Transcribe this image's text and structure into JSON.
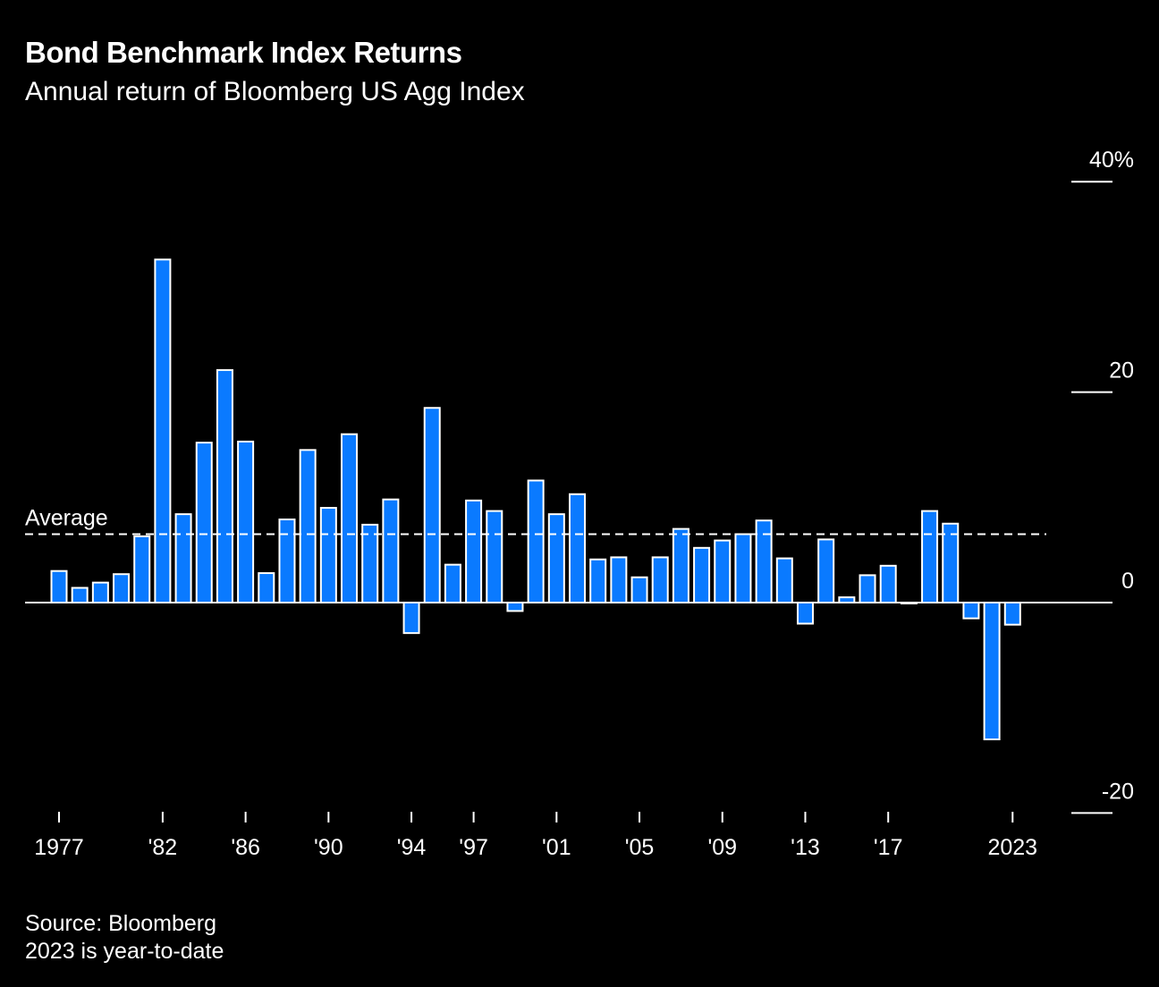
{
  "header": {
    "title": "Bond Benchmark Index Returns",
    "subtitle": "Annual return of Bloomberg US Agg Index"
  },
  "footer": {
    "source": "Source: Bloomberg",
    "note": "2023 is year-to-date"
  },
  "chart_data": {
    "type": "bar",
    "title": "Bond Benchmark Index Returns",
    "subtitle": "Annual return of Bloomberg US Agg Index",
    "categories": [
      1977,
      1978,
      1979,
      1980,
      1981,
      1982,
      1983,
      1984,
      1985,
      1986,
      1987,
      1988,
      1989,
      1990,
      1991,
      1992,
      1993,
      1994,
      1995,
      1996,
      1997,
      1998,
      1999,
      2000,
      2001,
      2002,
      2003,
      2004,
      2005,
      2006,
      2007,
      2008,
      2009,
      2010,
      2011,
      2012,
      2013,
      2014,
      2015,
      2016,
      2017,
      2018,
      2019,
      2020,
      2021,
      2022,
      2023
    ],
    "values": [
      3.0,
      1.4,
      1.9,
      2.7,
      6.3,
      32.6,
      8.4,
      15.2,
      22.1,
      15.3,
      2.8,
      7.9,
      14.5,
      9.0,
      16.0,
      7.4,
      9.8,
      -2.9,
      18.5,
      3.6,
      9.7,
      8.7,
      -0.8,
      11.6,
      8.4,
      10.3,
      4.1,
      4.3,
      2.4,
      4.3,
      7.0,
      5.2,
      5.9,
      6.5,
      7.8,
      4.2,
      -2.0,
      6.0,
      0.5,
      2.6,
      3.5,
      0.0,
      8.7,
      7.5,
      -1.5,
      -13.0,
      -2.1
    ],
    "average": {
      "label": "Average",
      "value": 6.5
    },
    "ylim": [
      -20,
      40
    ],
    "yticks": [
      {
        "value": 40,
        "label": "40%"
      },
      {
        "value": 20,
        "label": "20"
      },
      {
        "value": 0,
        "label": "0"
      },
      {
        "value": -20,
        "label": "-20"
      }
    ],
    "xticks": [
      {
        "year": 1977,
        "label": "1977"
      },
      {
        "year": 1982,
        "label": "'82"
      },
      {
        "year": 1986,
        "label": "'86"
      },
      {
        "year": 1990,
        "label": "'90"
      },
      {
        "year": 1994,
        "label": "'94"
      },
      {
        "year": 1997,
        "label": "'97"
      },
      {
        "year": 2001,
        "label": "'01"
      },
      {
        "year": 2005,
        "label": "'05"
      },
      {
        "year": 2009,
        "label": "'09"
      },
      {
        "year": 2013,
        "label": "'13"
      },
      {
        "year": 2017,
        "label": "'17"
      },
      {
        "year": 2023,
        "label": "2023"
      }
    ],
    "colors": {
      "bar": "#0A7AFF",
      "bar_outline": "#FFFFFF",
      "background": "#000000"
    },
    "grid": false
  }
}
